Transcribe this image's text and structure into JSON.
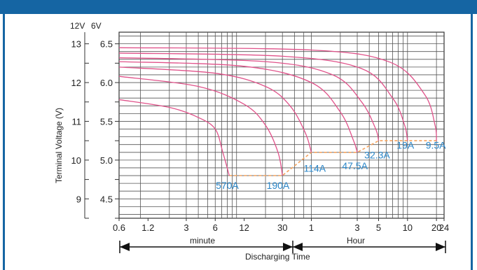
{
  "chart_data": {
    "type": "line",
    "ylabel": "Terminal Voltage (V)",
    "y_axes": {
      "left_header": "12V",
      "right_header": "6V",
      "left_ticks": [
        "13",
        "12",
        "11",
        "10",
        "9"
      ],
      "right_ticks": [
        "6.5",
        "6.0",
        "5.5",
        "5.0",
        "4.5"
      ],
      "ylim_6v": [
        4.25,
        6.65
      ]
    },
    "x_axis": {
      "scale": "log",
      "tick_labels": [
        "0.6",
        "1.2",
        "3",
        "6",
        "12",
        "30",
        "1",
        "3",
        "5",
        "10",
        "20",
        "24"
      ],
      "minute_label": "minute",
      "hour_label": "Hour",
      "title": "Discharging Time"
    },
    "series": [
      {
        "name": "570A",
        "points": [
          [
            0.6,
            5.78
          ],
          [
            2,
            5.68
          ],
          [
            4,
            5.55
          ],
          [
            6,
            5.4
          ],
          [
            7.2,
            5.1
          ],
          [
            8.4,
            4.8
          ]
        ]
      },
      {
        "name": "190A",
        "points": [
          [
            0.6,
            6.08
          ],
          [
            4,
            5.95
          ],
          [
            12,
            5.72
          ],
          [
            20,
            5.45
          ],
          [
            27,
            5.1
          ],
          [
            30,
            4.8
          ]
        ]
      },
      {
        "name": "114A",
        "points": [
          [
            0.6,
            6.2
          ],
          [
            6,
            6.12
          ],
          [
            20,
            5.95
          ],
          [
            36,
            5.7
          ],
          [
            52,
            5.35
          ],
          [
            60,
            5.1
          ]
        ]
      },
      {
        "name": "47.5A",
        "points": [
          [
            0.6,
            6.27
          ],
          [
            12,
            6.21
          ],
          [
            60,
            6.0
          ],
          [
            120,
            5.62
          ],
          [
            165,
            5.25
          ],
          [
            180,
            5.1
          ]
        ]
      },
      {
        "name": "32.3A",
        "points": [
          [
            0.6,
            6.32
          ],
          [
            20,
            6.27
          ],
          [
            100,
            6.1
          ],
          [
            200,
            5.75
          ],
          [
            280,
            5.4
          ],
          [
            300,
            5.25
          ]
        ]
      },
      {
        "name": "19A",
        "points": [
          [
            0.6,
            6.38
          ],
          [
            30,
            6.34
          ],
          [
            200,
            6.18
          ],
          [
            420,
            5.8
          ],
          [
            560,
            5.45
          ],
          [
            600,
            5.25
          ]
        ]
      },
      {
        "name": "9.5A",
        "points": [
          [
            0.6,
            6.45
          ],
          [
            60,
            6.42
          ],
          [
            400,
            6.26
          ],
          [
            900,
            5.85
          ],
          [
            1160,
            5.45
          ],
          [
            1200,
            5.25
          ]
        ]
      }
    ],
    "cutoff_line": [
      [
        8.4,
        4.8
      ],
      [
        30,
        4.8
      ],
      [
        60,
        5.1
      ],
      [
        180,
        5.1
      ],
      [
        300,
        5.25
      ],
      [
        1200,
        5.25
      ]
    ],
    "current_labels": [
      {
        "text": "570A",
        "x": 8.0,
        "y": 4.63
      },
      {
        "text": "190A",
        "x": 27.0,
        "y": 4.63
      },
      {
        "text": "114A",
        "x": 65.0,
        "y": 4.85
      },
      {
        "text": "47.5A",
        "x": 170.0,
        "y": 4.88
      },
      {
        "text": "32.3A",
        "x": 290.0,
        "y": 5.02
      },
      {
        "text": "19A",
        "x": 570.0,
        "y": 5.15
      },
      {
        "text": "9.5A",
        "x": 1180.0,
        "y": 5.15
      }
    ],
    "grid": true,
    "colors": {
      "curve": "#e0528a",
      "cutoff": "#f5a25c",
      "label": "#2a86c8",
      "frame": "#1565a3",
      "grid": "#555555"
    }
  }
}
